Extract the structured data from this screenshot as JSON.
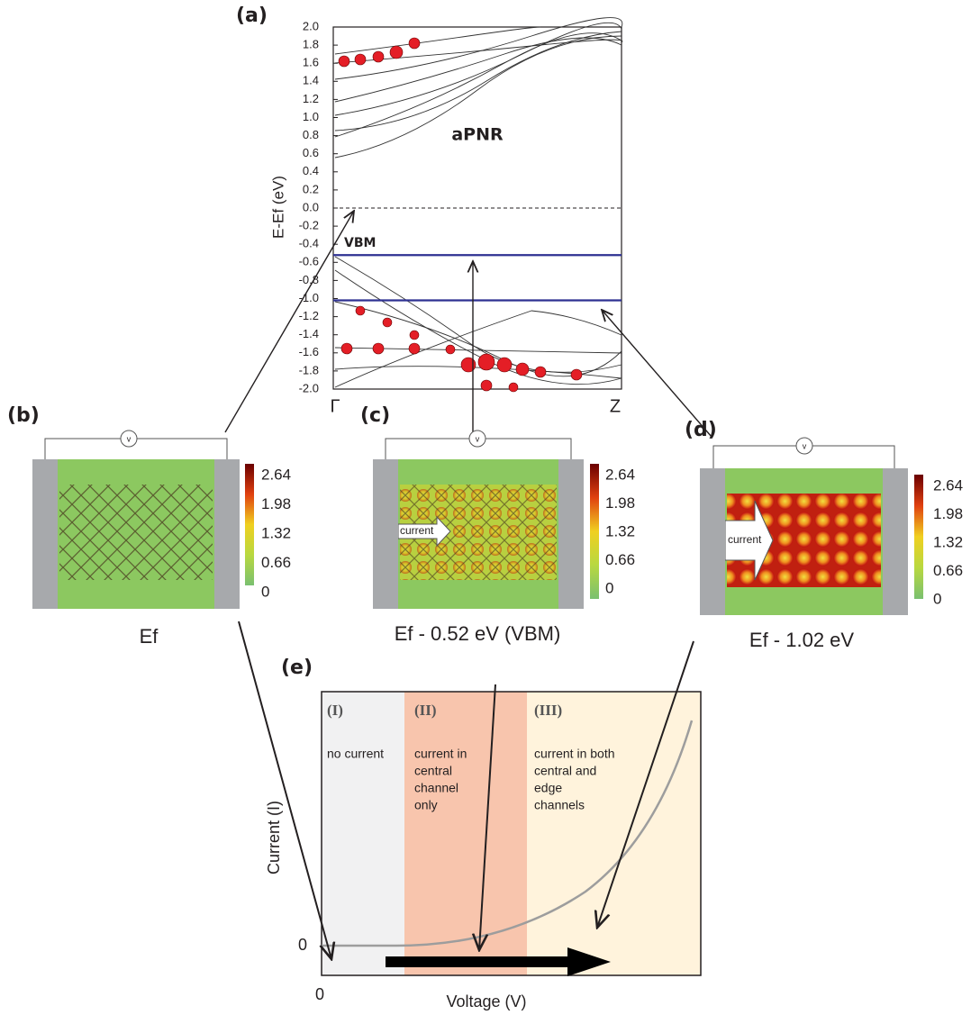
{
  "panel_a": {
    "label": "(a)",
    "y_label": "E-Ef (eV)",
    "ylim": [
      -2.0,
      2.0
    ],
    "yticks": [
      {
        "value": 2.0,
        "label": "2.0"
      },
      1.8,
      1.6,
      1.4,
      1.2,
      {
        "value": 1.0,
        "label": "1.0"
      },
      0.8,
      0.6,
      0.4,
      0.2,
      {
        "value": 0.0,
        "label": "0.0"
      },
      -0.2,
      -0.4,
      -0.6,
      -0.8,
      {
        "value": -1.0,
        "label": "-1.0"
      },
      -1.2,
      -1.4,
      -1.6,
      -1.8,
      {
        "value": -2.0,
        "label": "-2.0"
      }
    ],
    "k_points": [
      "Γ",
      "Z"
    ],
    "material": "aPNR",
    "vbm_label": "VBM",
    "fermi_level": 0,
    "levels": [
      -0.52,
      -1.02
    ]
  },
  "panel_b": {
    "label": "(b)",
    "caption": "Ef",
    "voltmeter": "v",
    "colorbar": [
      "2.64",
      "1.98",
      "1.32",
      "0.66",
      "0"
    ]
  },
  "panel_c": {
    "label": "(c)",
    "caption": "Ef - 0.52 eV (VBM)",
    "voltmeter": "v",
    "arrow_text": "current",
    "colorbar": [
      "2.64",
      "1.98",
      "1.32",
      "0.66",
      "0"
    ]
  },
  "panel_d": {
    "label": "(d)",
    "caption": "Ef - 1.02 eV",
    "voltmeter": "v",
    "arrow_text": "current",
    "colorbar": [
      "2.64",
      "1.98",
      "1.32",
      "0.66",
      "0"
    ]
  },
  "panel_e": {
    "label": "(e)",
    "y_label": "Current (I)",
    "x_label": "Voltage (V)",
    "y_zero": "0",
    "x_zero": "0",
    "regions": [
      {
        "name": "(I)",
        "text": [
          "no current"
        ]
      },
      {
        "name": "(II)",
        "text": [
          "current in",
          "central",
          "channel",
          "only"
        ]
      },
      {
        "name": "(III)",
        "text": [
          "current in both",
          "central and",
          "edge",
          "channels"
        ]
      }
    ]
  }
}
